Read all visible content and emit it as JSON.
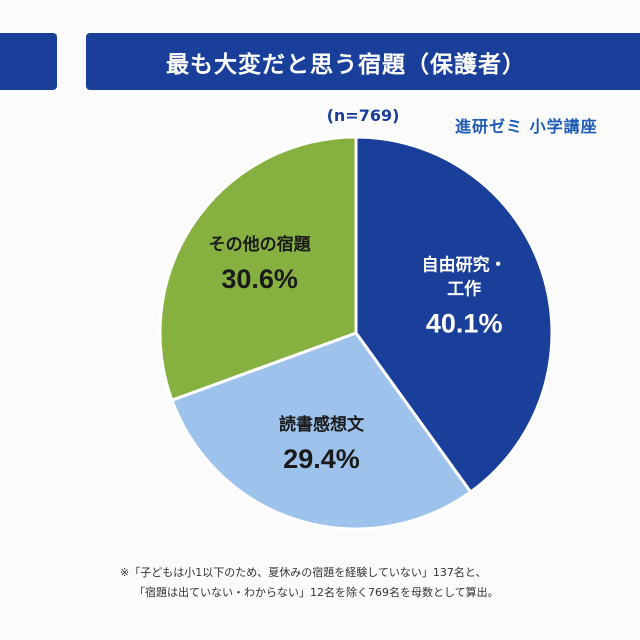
{
  "header": {
    "title": "最も大変だと思う宿題（保護者）"
  },
  "sample_size": "(n=769)",
  "brand": "進研ゼミ 小学講座",
  "chart_data": {
    "type": "pie",
    "title": "最も大変だと思う宿題（保護者）",
    "n": 769,
    "slices": [
      {
        "label": "自由研究・工作",
        "value": 40.1,
        "display": "40.1%",
        "color": "#1a3f9b",
        "text_color": "#ffffff"
      },
      {
        "label": "読書感想文",
        "value": 29.4,
        "display": "29.4%",
        "color": "#9dc3ec",
        "text_color": "#1a1a1a"
      },
      {
        "label": "その他の宿題",
        "value": 30.6,
        "display": "30.6%",
        "color": "#86b03f",
        "text_color": "#1a1a1a"
      }
    ],
    "start_angle_deg": 0,
    "direction": "clockwise"
  },
  "footnote": {
    "line1": "※「子どもは小1以下のため、夏休みの宿題を経験していない」137名と、",
    "line2": "「宿題は出ていない・わからない」12名を除く769名を母数として算出。"
  }
}
